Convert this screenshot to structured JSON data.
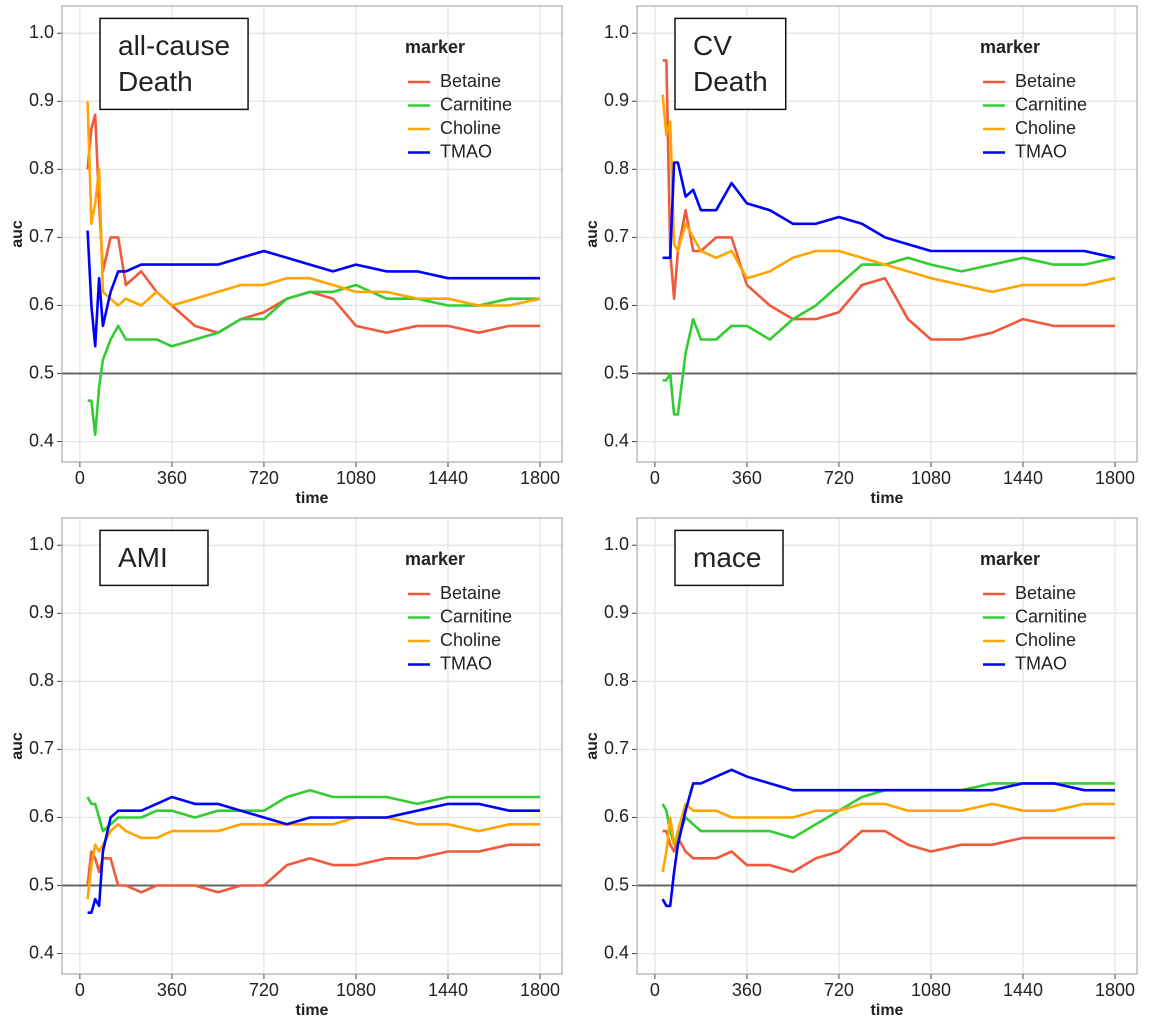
{
  "chart_data": [
    {
      "type": "line",
      "annotation": [
        "all-cause",
        "Death"
      ],
      "legend_title": "marker",
      "xlabel": "time",
      "ylabel": "auc",
      "xlim": [
        -70,
        1886
      ],
      "ylim": [
        0.37,
        1.04
      ],
      "xticks": [
        0,
        360,
        720,
        1080,
        1440,
        1800
      ],
      "yticks": [
        0.4,
        0.5,
        0.6,
        0.7,
        0.8,
        0.9,
        {
          "value": 1,
          "label": "1.0"
        }
      ],
      "hline": 0.5,
      "grid": true,
      "x": [
        30,
        45,
        60,
        75,
        90,
        120,
        150,
        180,
        240,
        300,
        360,
        450,
        540,
        630,
        720,
        810,
        900,
        990,
        1080,
        1200,
        1320,
        1440,
        1560,
        1680,
        1800
      ],
      "series": [
        {
          "name": "Betaine",
          "color": "#f05a3c",
          "values": [
            0.8,
            0.86,
            0.88,
            0.75,
            0.65,
            0.7,
            0.7,
            0.63,
            0.65,
            0.62,
            0.6,
            0.57,
            0.56,
            0.58,
            0.59,
            0.61,
            0.62,
            0.61,
            0.57,
            0.56,
            0.57,
            0.57,
            0.56,
            0.57,
            0.57
          ]
        },
        {
          "name": "Carnitine",
          "color": "#33cc33",
          "values": [
            0.46,
            0.46,
            0.41,
            0.48,
            0.52,
            0.55,
            0.57,
            0.55,
            0.55,
            0.55,
            0.54,
            0.55,
            0.56,
            0.58,
            0.58,
            0.61,
            0.62,
            0.62,
            0.63,
            0.61,
            0.61,
            0.6,
            0.6,
            0.61,
            0.61
          ]
        },
        {
          "name": "Choline",
          "color": "#ffa500",
          "values": [
            0.9,
            0.72,
            0.75,
            0.8,
            0.62,
            0.61,
            0.6,
            0.61,
            0.6,
            0.62,
            0.6,
            0.61,
            0.62,
            0.63,
            0.63,
            0.64,
            0.64,
            0.63,
            0.62,
            0.62,
            0.61,
            0.61,
            0.6,
            0.6,
            0.61
          ]
        },
        {
          "name": "TMAO",
          "color": "#0000ff",
          "values": [
            0.71,
            0.6,
            0.54,
            0.64,
            0.57,
            0.62,
            0.65,
            0.65,
            0.66,
            0.66,
            0.66,
            0.66,
            0.66,
            0.67,
            0.68,
            0.67,
            0.66,
            0.65,
            0.66,
            0.65,
            0.65,
            0.64,
            0.64,
            0.64,
            0.64
          ]
        }
      ]
    },
    {
      "type": "line",
      "annotation": [
        "CV",
        "Death"
      ],
      "legend_title": "marker",
      "xlabel": "time",
      "ylabel": "auc",
      "xlim": [
        -70,
        1886
      ],
      "ylim": [
        0.37,
        1.04
      ],
      "xticks": [
        0,
        360,
        720,
        1080,
        1440,
        1800
      ],
      "yticks": [
        0.4,
        0.5,
        0.6,
        0.7,
        0.8,
        0.9,
        {
          "value": 1,
          "label": "1.0"
        }
      ],
      "hline": 0.5,
      "grid": true,
      "x": [
        30,
        45,
        60,
        75,
        90,
        120,
        150,
        180,
        240,
        300,
        360,
        450,
        540,
        630,
        720,
        810,
        900,
        990,
        1080,
        1200,
        1320,
        1440,
        1560,
        1680,
        1800
      ],
      "series": [
        {
          "name": "Betaine",
          "color": "#f05a3c",
          "values": [
            0.96,
            0.96,
            0.68,
            0.61,
            0.68,
            0.74,
            0.68,
            0.68,
            0.7,
            0.7,
            0.63,
            0.6,
            0.58,
            0.58,
            0.59,
            0.63,
            0.64,
            0.58,
            0.55,
            0.55,
            0.56,
            0.58,
            0.57,
            0.57,
            0.57
          ]
        },
        {
          "name": "Carnitine",
          "color": "#33cc33",
          "values": [
            0.49,
            0.49,
            0.5,
            0.44,
            0.44,
            0.53,
            0.58,
            0.55,
            0.55,
            0.57,
            0.57,
            0.55,
            0.58,
            0.6,
            0.63,
            0.66,
            0.66,
            0.67,
            0.66,
            0.65,
            0.66,
            0.67,
            0.66,
            0.66,
            0.67
          ]
        },
        {
          "name": "Choline",
          "color": "#ffa500",
          "values": [
            0.91,
            0.85,
            0.87,
            0.69,
            0.68,
            0.72,
            0.7,
            0.68,
            0.67,
            0.68,
            0.64,
            0.65,
            0.67,
            0.68,
            0.68,
            0.67,
            0.66,
            0.65,
            0.64,
            0.63,
            0.62,
            0.63,
            0.63,
            0.63,
            0.64
          ]
        },
        {
          "name": "TMAO",
          "color": "#0000ff",
          "values": [
            0.67,
            0.67,
            0.67,
            0.81,
            0.81,
            0.76,
            0.77,
            0.74,
            0.74,
            0.78,
            0.75,
            0.74,
            0.72,
            0.72,
            0.73,
            0.72,
            0.7,
            0.69,
            0.68,
            0.68,
            0.68,
            0.68,
            0.68,
            0.68,
            0.67
          ]
        }
      ]
    },
    {
      "type": "line",
      "annotation": [
        "AMI"
      ],
      "legend_title": "marker",
      "xlabel": "time",
      "ylabel": "auc",
      "xlim": [
        -70,
        1886
      ],
      "ylim": [
        0.37,
        1.04
      ],
      "xticks": [
        0,
        360,
        720,
        1080,
        1440,
        1800
      ],
      "yticks": [
        0.4,
        0.5,
        0.6,
        0.7,
        0.8,
        0.9,
        {
          "value": 1,
          "label": "1.0"
        }
      ],
      "hline": 0.5,
      "grid": true,
      "x": [
        30,
        45,
        60,
        75,
        90,
        120,
        150,
        180,
        240,
        300,
        360,
        450,
        540,
        630,
        720,
        810,
        900,
        990,
        1080,
        1200,
        1320,
        1440,
        1560,
        1680,
        1800
      ],
      "series": [
        {
          "name": "Betaine",
          "color": "#f05a3c",
          "values": [
            0.5,
            0.55,
            0.54,
            0.52,
            0.54,
            0.54,
            0.5,
            0.5,
            0.49,
            0.5,
            0.5,
            0.5,
            0.49,
            0.5,
            0.5,
            0.53,
            0.54,
            0.53,
            0.53,
            0.54,
            0.54,
            0.55,
            0.55,
            0.56,
            0.56
          ]
        },
        {
          "name": "Carnitine",
          "color": "#33cc33",
          "values": [
            0.63,
            0.62,
            0.62,
            0.6,
            0.58,
            0.59,
            0.6,
            0.6,
            0.6,
            0.61,
            0.61,
            0.6,
            0.61,
            0.61,
            0.61,
            0.63,
            0.64,
            0.63,
            0.63,
            0.63,
            0.62,
            0.63,
            0.63,
            0.63,
            0.63
          ]
        },
        {
          "name": "Choline",
          "color": "#ffa500",
          "values": [
            0.48,
            0.53,
            0.56,
            0.55,
            0.56,
            0.58,
            0.59,
            0.58,
            0.57,
            0.57,
            0.58,
            0.58,
            0.58,
            0.59,
            0.59,
            0.59,
            0.59,
            0.59,
            0.6,
            0.6,
            0.59,
            0.59,
            0.58,
            0.59,
            0.59
          ]
        },
        {
          "name": "TMAO",
          "color": "#0000ff",
          "values": [
            0.46,
            0.46,
            0.48,
            0.47,
            0.55,
            0.6,
            0.61,
            0.61,
            0.61,
            0.62,
            0.63,
            0.62,
            0.62,
            0.61,
            0.6,
            0.59,
            0.6,
            0.6,
            0.6,
            0.6,
            0.61,
            0.62,
            0.62,
            0.61,
            0.61
          ]
        }
      ]
    },
    {
      "type": "line",
      "annotation": [
        "mace"
      ],
      "legend_title": "marker",
      "xlabel": "time",
      "ylabel": "auc",
      "xlim": [
        -70,
        1886
      ],
      "ylim": [
        0.37,
        1.04
      ],
      "xticks": [
        0,
        360,
        720,
        1080,
        1440,
        1800
      ],
      "yticks": [
        0.4,
        0.5,
        0.6,
        0.7,
        0.8,
        0.9,
        {
          "value": 1,
          "label": "1.0"
        }
      ],
      "hline": 0.5,
      "grid": true,
      "x": [
        30,
        45,
        60,
        75,
        90,
        120,
        150,
        180,
        240,
        300,
        360,
        450,
        540,
        630,
        720,
        810,
        900,
        990,
        1080,
        1200,
        1320,
        1440,
        1560,
        1680,
        1800
      ],
      "series": [
        {
          "name": "Betaine",
          "color": "#f05a3c",
          "values": [
            0.58,
            0.58,
            0.56,
            0.55,
            0.57,
            0.55,
            0.54,
            0.54,
            0.54,
            0.55,
            0.53,
            0.53,
            0.52,
            0.54,
            0.55,
            0.58,
            0.58,
            0.56,
            0.55,
            0.56,
            0.56,
            0.57,
            0.57,
            0.57,
            0.57
          ]
        },
        {
          "name": "Carnitine",
          "color": "#33cc33",
          "values": [
            0.62,
            0.61,
            0.58,
            0.56,
            0.57,
            0.6,
            0.59,
            0.58,
            0.58,
            0.58,
            0.58,
            0.58,
            0.57,
            0.59,
            0.61,
            0.63,
            0.64,
            0.64,
            0.64,
            0.64,
            0.65,
            0.65,
            0.65,
            0.65,
            0.65
          ]
        },
        {
          "name": "Choline",
          "color": "#ffa500",
          "values": [
            0.52,
            0.55,
            0.6,
            0.56,
            0.58,
            0.62,
            0.61,
            0.61,
            0.61,
            0.6,
            0.6,
            0.6,
            0.6,
            0.61,
            0.61,
            0.62,
            0.62,
            0.61,
            0.61,
            0.61,
            0.62,
            0.61,
            0.61,
            0.62,
            0.62
          ]
        },
        {
          "name": "TMAO",
          "color": "#0000ff",
          "values": [
            0.48,
            0.47,
            0.47,
            0.52,
            0.56,
            0.61,
            0.65,
            0.65,
            0.66,
            0.67,
            0.66,
            0.65,
            0.64,
            0.64,
            0.64,
            0.64,
            0.64,
            0.64,
            0.64,
            0.64,
            0.64,
            0.65,
            0.65,
            0.64,
            0.64
          ]
        }
      ]
    }
  ]
}
